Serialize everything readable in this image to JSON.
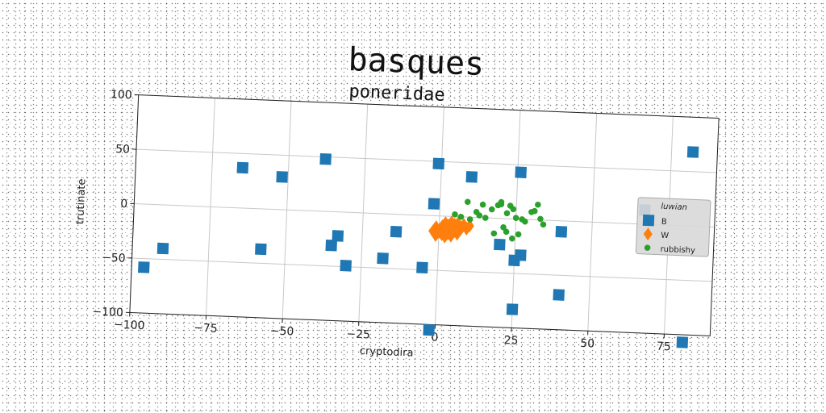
{
  "title": "basques",
  "chart_data": {
    "type": "scatter",
    "title": "poneridae",
    "xlabel": "cryptodira",
    "ylabel": "trutinate",
    "xlim": [
      -100,
      90
    ],
    "ylim": [
      -100,
      100
    ],
    "xticks": [
      -100,
      -75,
      -50,
      -25,
      0,
      25,
      50,
      75
    ],
    "yticks": [
      -100,
      -50,
      0,
      50,
      100
    ],
    "tick_labels_x": [
      "−100",
      "−75",
      "−50",
      "−25",
      "0",
      "25",
      "50",
      "75"
    ],
    "tick_labels_y": [
      "−100",
      "−50",
      "0",
      "50",
      "100"
    ],
    "grid": true,
    "legend": {
      "title": "luwian",
      "placement": "right"
    },
    "series": [
      {
        "name": "B",
        "marker": "square",
        "color": "#1f77b4",
        "x": [
          -96,
          -90,
          -65,
          -58,
          -52,
          -38,
          -35,
          -33,
          -30,
          -18,
          -14,
          -5,
          -2,
          -1,
          -2,
          10,
          20,
          25,
          26,
          25,
          27,
          40,
          40,
          67,
          82,
          81
        ],
        "y": [
          -58,
          -40,
          37,
          -37,
          30,
          48,
          -31,
          -22,
          -49,
          -41,
          -16,
          -48,
          11,
          48,
          -105,
          37,
          -24,
          -38,
          43,
          -83,
          -33,
          -10,
          -68,
          13,
          68,
          -107
        ]
      },
      {
        "name": "W",
        "marker": "diamond",
        "color": "#ff7f0e",
        "x": [
          -2,
          -1,
          0,
          1,
          2,
          3,
          4,
          5,
          6,
          7,
          8,
          9,
          10,
          -1,
          1,
          3,
          5,
          7,
          9,
          0,
          2,
          4,
          6,
          8,
          2,
          4,
          6
        ],
        "y": [
          -14,
          -10,
          -15,
          -9,
          -12,
          -8,
          -13,
          -7,
          -11,
          -9,
          -8,
          -10,
          -8,
          -18,
          -17,
          -16,
          -14,
          -12,
          -11,
          -13,
          -6,
          -5,
          -6,
          -7,
          -19,
          -18,
          -16
        ]
      },
      {
        "name": "rubbishy",
        "marker": "circle",
        "color": "#2ca02c",
        "x": [
          5,
          7,
          9,
          10,
          12,
          13,
          14,
          15,
          17,
          19,
          20,
          21,
          22,
          23,
          24,
          25,
          26,
          28,
          30,
          32,
          33,
          34,
          20,
          22,
          27,
          18,
          24,
          31
        ],
        "y": [
          2,
          0,
          14,
          -2,
          5,
          2,
          12,
          0,
          8,
          12,
          15,
          -8,
          5,
          12,
          9,
          1,
          -14,
          -2,
          7,
          14,
          1,
          -4,
          13,
          -12,
          0,
          -14,
          -18,
          8
        ]
      }
    ]
  }
}
